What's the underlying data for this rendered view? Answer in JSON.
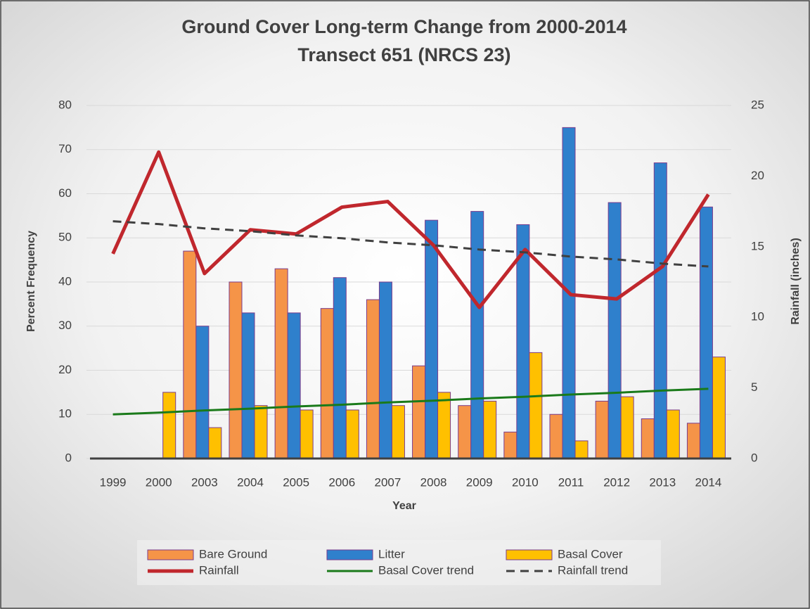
{
  "chart_data": {
    "type": "bar",
    "title": [
      "Ground Cover Long-term Change from 2000-2014",
      "Transect 651 (NRCS 23)"
    ],
    "x_label": "Year",
    "y_label": "Percent Frequency",
    "y2_label": "Rainfall (inches)",
    "categories": [
      "1999",
      "2000",
      "2003",
      "2004",
      "2005",
      "2006",
      "2007",
      "2008",
      "2009",
      "2010",
      "2011",
      "2012",
      "2013",
      "2014"
    ],
    "series": [
      {
        "name": "Bare Ground",
        "type": "bar",
        "color": "#f59448",
        "values": [
          null,
          null,
          47,
          40,
          43,
          34,
          36,
          21,
          12,
          6,
          10,
          13,
          9,
          8
        ]
      },
      {
        "name": "Litter",
        "type": "bar",
        "color": "#2f80cc",
        "values": [
          null,
          null,
          30,
          33,
          33,
          41,
          40,
          54,
          56,
          53,
          75,
          58,
          67,
          57
        ]
      },
      {
        "name": "Basal Cover",
        "type": "bar",
        "color": "#ffc000",
        "values": [
          null,
          15,
          7,
          12,
          11,
          11,
          12,
          15,
          13,
          24,
          4,
          14,
          11,
          23
        ]
      },
      {
        "name": "Rainfall",
        "type": "line",
        "axis": "y2",
        "color": "#c0272d",
        "values": [
          14.5,
          21.7,
          13.1,
          16.2,
          15.9,
          17.8,
          18.2,
          15.1,
          10.7,
          14.8,
          11.6,
          11.3,
          13.6,
          18.7
        ]
      },
      {
        "name": "Basal Cover trend",
        "type": "line",
        "color": "#1a7a1a",
        "values": [
          10,
          10.4,
          10.9,
          11.3,
          11.8,
          12.2,
          12.7,
          13.1,
          13.6,
          14.0,
          14.5,
          14.9,
          15.4,
          15.8
        ]
      },
      {
        "name": "Rainfall trend",
        "type": "line",
        "axis": "y2",
        "dashed": true,
        "color": "#404040",
        "values": [
          16.8,
          16.6,
          16.3,
          16.1,
          15.8,
          15.6,
          15.3,
          15.1,
          14.8,
          14.6,
          14.3,
          14.1,
          13.8,
          13.6
        ]
      }
    ],
    "ylim": [
      0,
      80
    ],
    "yticks": [
      0,
      10,
      20,
      30,
      40,
      50,
      60,
      70,
      80
    ],
    "y2lim": [
      0,
      25
    ],
    "y2ticks": [
      0,
      5,
      10,
      15,
      20,
      25
    ],
    "grid": true,
    "legend": "bottom"
  }
}
